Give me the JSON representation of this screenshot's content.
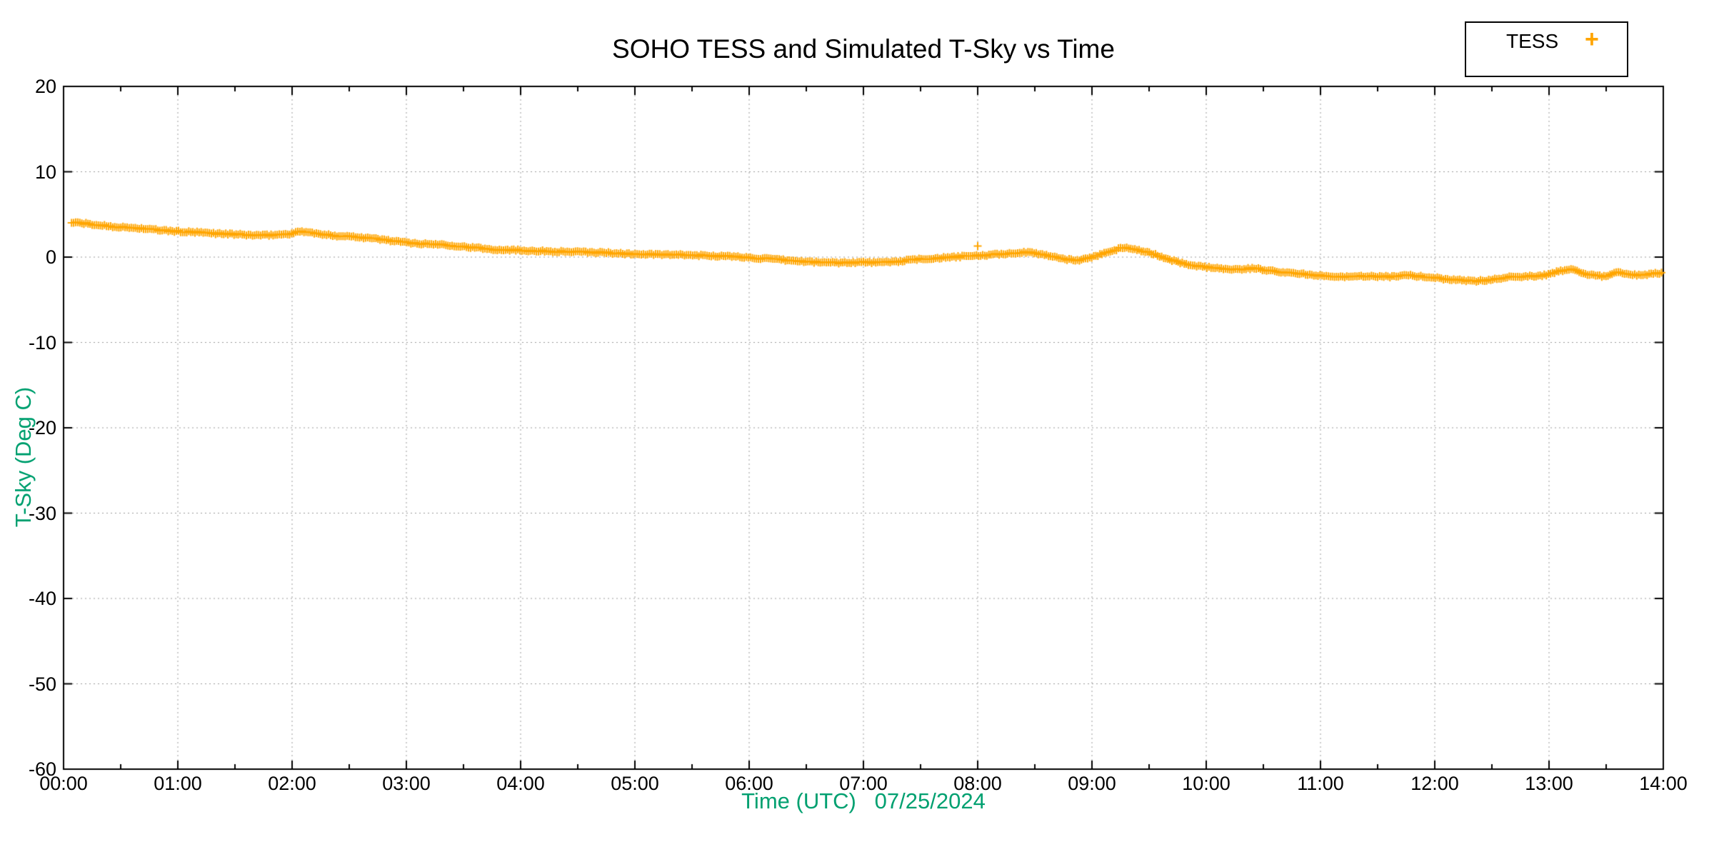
{
  "chart_data": {
    "type": "scatter",
    "title": "SOHO TESS and Simulated T-Sky vs Time",
    "xlabel": "Time (UTC)   07/25/2024",
    "ylabel": "T-Sky (Deg C)",
    "axis_label_color": "#00A070",
    "marker": "plus",
    "marker_color": "#FFA500",
    "legend_marker_glyph": "+",
    "grid": "dotted",
    "grid_color": "#9a9a9a",
    "legend_position": "top-right-outside",
    "xlim": [
      0,
      14
    ],
    "ylim": [
      -60,
      20
    ],
    "x_tick_interval_hours": 1,
    "x_minor_tick_interval_hours": 0.5,
    "x_tick_labels": [
      "00:00",
      "01:00",
      "02:00",
      "03:00",
      "04:00",
      "05:00",
      "06:00",
      "07:00",
      "08:00",
      "09:00",
      "10:00",
      "11:00",
      "12:00",
      "13:00",
      "14:00"
    ],
    "y_ticks": [
      20,
      10,
      0,
      -10,
      -20,
      -30,
      -40,
      -50,
      -60
    ],
    "sample_step_hours": 0.018,
    "series": [
      {
        "name": "TESS",
        "keyframes": [
          [
            0.07,
            4.05
          ],
          [
            0.15,
            4.0
          ],
          [
            0.25,
            3.8
          ],
          [
            0.35,
            3.7
          ],
          [
            0.5,
            3.5
          ],
          [
            0.65,
            3.4
          ],
          [
            0.8,
            3.2
          ],
          [
            0.9,
            3.1
          ],
          [
            1.0,
            3.0
          ],
          [
            1.15,
            2.9
          ],
          [
            1.3,
            2.8
          ],
          [
            1.45,
            2.7
          ],
          [
            1.6,
            2.6
          ],
          [
            1.75,
            2.55
          ],
          [
            1.9,
            2.65
          ],
          [
            2.0,
            2.75
          ],
          [
            2.08,
            3.05
          ],
          [
            2.15,
            2.9
          ],
          [
            2.25,
            2.65
          ],
          [
            2.4,
            2.5
          ],
          [
            2.55,
            2.4
          ],
          [
            2.7,
            2.2
          ],
          [
            2.85,
            1.95
          ],
          [
            3.0,
            1.7
          ],
          [
            3.15,
            1.55
          ],
          [
            3.3,
            1.5
          ],
          [
            3.45,
            1.3
          ],
          [
            3.6,
            1.1
          ],
          [
            3.75,
            0.9
          ],
          [
            3.9,
            0.85
          ],
          [
            4.1,
            0.75
          ],
          [
            4.3,
            0.65
          ],
          [
            4.5,
            0.6
          ],
          [
            4.7,
            0.55
          ],
          [
            4.85,
            0.45
          ],
          [
            5.0,
            0.35
          ],
          [
            5.2,
            0.3
          ],
          [
            5.4,
            0.25
          ],
          [
            5.6,
            0.2
          ],
          [
            5.8,
            0.1
          ],
          [
            6.0,
            -0.05
          ],
          [
            6.2,
            -0.25
          ],
          [
            6.4,
            -0.45
          ],
          [
            6.6,
            -0.6
          ],
          [
            6.8,
            -0.65
          ],
          [
            7.0,
            -0.6
          ],
          [
            7.15,
            -0.65
          ],
          [
            7.3,
            -0.5
          ],
          [
            7.45,
            -0.3
          ],
          [
            7.6,
            -0.15
          ],
          [
            7.75,
            -0.05
          ],
          [
            7.9,
            0.1
          ],
          [
            8.05,
            0.2
          ],
          [
            8.2,
            0.35
          ],
          [
            8.35,
            0.5
          ],
          [
            8.45,
            0.55
          ],
          [
            8.6,
            0.25
          ],
          [
            8.75,
            -0.2
          ],
          [
            8.85,
            -0.4
          ],
          [
            8.95,
            -0.2
          ],
          [
            9.05,
            0.2
          ],
          [
            9.15,
            0.7
          ],
          [
            9.3,
            1.15
          ],
          [
            9.4,
            0.85
          ],
          [
            9.55,
            0.3
          ],
          [
            9.7,
            -0.4
          ],
          [
            9.85,
            -0.9
          ],
          [
            10.0,
            -1.2
          ],
          [
            10.15,
            -1.35
          ],
          [
            10.3,
            -1.45
          ],
          [
            10.4,
            -1.3
          ],
          [
            10.55,
            -1.55
          ],
          [
            10.7,
            -1.8
          ],
          [
            10.85,
            -2.0
          ],
          [
            11.0,
            -2.15
          ],
          [
            11.15,
            -2.25
          ],
          [
            11.3,
            -2.3
          ],
          [
            11.45,
            -2.25
          ],
          [
            11.6,
            -2.3
          ],
          [
            11.75,
            -2.1
          ],
          [
            11.9,
            -2.3
          ],
          [
            12.05,
            -2.5
          ],
          [
            12.2,
            -2.7
          ],
          [
            12.35,
            -2.8
          ],
          [
            12.5,
            -2.65
          ],
          [
            12.65,
            -2.3
          ],
          [
            12.8,
            -2.25
          ],
          [
            12.95,
            -2.15
          ],
          [
            13.1,
            -1.6
          ],
          [
            13.2,
            -1.45
          ],
          [
            13.35,
            -2.05
          ],
          [
            13.5,
            -2.3
          ],
          [
            13.6,
            -1.75
          ],
          [
            13.75,
            -2.1
          ],
          [
            13.9,
            -2.0
          ],
          [
            14.0,
            -1.8
          ]
        ],
        "outliers": [
          [
            8.0,
            1.3
          ]
        ]
      }
    ]
  }
}
